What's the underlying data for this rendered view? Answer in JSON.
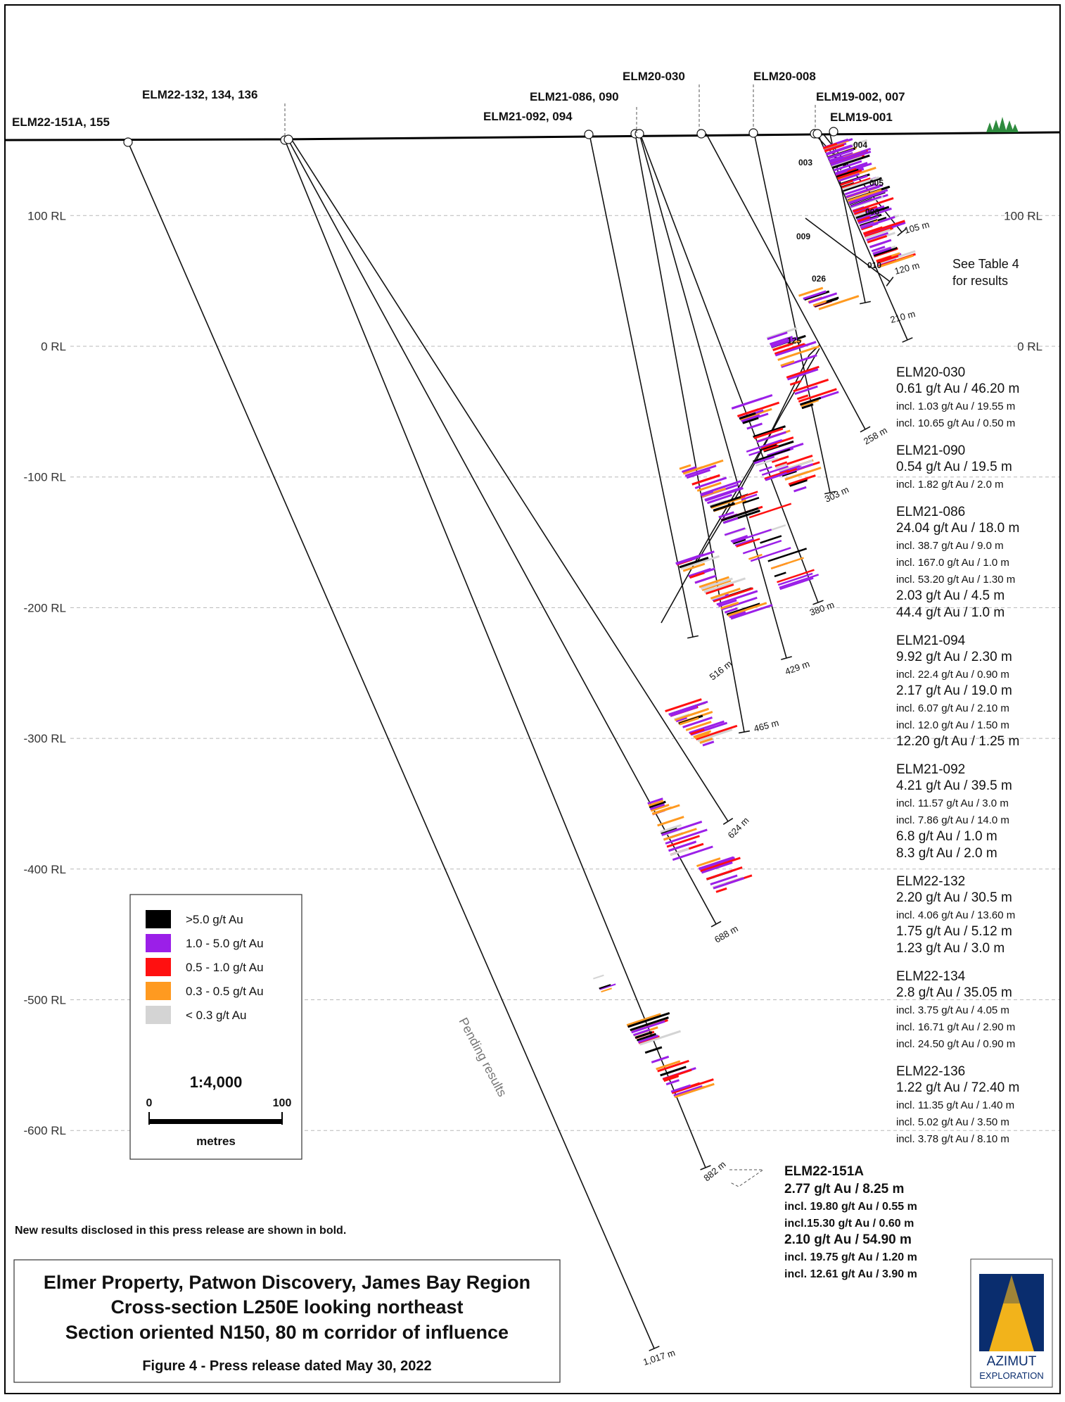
{
  "colors": {
    "frame": "#000000",
    "rl_line": "#b8b8b8",
    "rl_text": "#333333",
    "grade_gt5": "#000000",
    "grade_1_5": "#9b1fe8",
    "grade_05_1": "#ff1010",
    "grade_03_05": "#ff9a20",
    "grade_lt03": "#d4d4d4",
    "logo_blue": "#0a2d6e",
    "logo_gold": "#f2b31b",
    "tree": "#2e8b3e"
  },
  "rl_levels": [
    {
      "label": "100 RL",
      "rl": 100,
      "show_right": true
    },
    {
      "label": "0 RL",
      "rl": 0,
      "show_right": true
    },
    {
      "label": "-100 RL",
      "rl": -100,
      "show_right": false
    },
    {
      "label": "-200 RL",
      "rl": -200,
      "show_right": false
    },
    {
      "label": "-300 RL",
      "rl": -300,
      "show_right": false
    },
    {
      "label": "-400 RL",
      "rl": -400,
      "show_right": false
    },
    {
      "label": "-500 RL",
      "rl": -500,
      "show_right": false
    },
    {
      "label": "-600 RL",
      "rl": -600,
      "show_right": false
    }
  ],
  "collar_labels": [
    {
      "text": "ELM22-151A, 155",
      "pos": "a"
    },
    {
      "text": "ELM22-132, 134, 136",
      "pos": "b"
    },
    {
      "text": "ELM21-086, 090",
      "pos": "c"
    },
    {
      "text": "ELM21-092, 094",
      "pos": "d"
    },
    {
      "text": "ELM20-030",
      "pos": "e"
    },
    {
      "text": "ELM20-008",
      "pos": "f"
    },
    {
      "text": "ELM19-002, 007",
      "pos": "g"
    },
    {
      "text": "ELM19-001",
      "pos": "h"
    }
  ],
  "hole_ids": [
    "004",
    "003",
    "005",
    "006",
    "009",
    "010",
    "026",
    "125"
  ],
  "hole_lengths": [
    "105 m",
    "120 m",
    "210 m",
    "258 m",
    "303 m",
    "380 m",
    "429 m",
    "516 m",
    "465 m",
    "624 m",
    "688 m",
    "882 m",
    "1,017 m"
  ],
  "see_table": [
    "See Table 4",
    "for results"
  ],
  "pending_text": "Pending results",
  "results": [
    {
      "hole": "ELM20-030",
      "lines": [
        {
          "text": "0.61 g/t Au / 46.20 m",
          "big": true
        },
        {
          "text": "incl. 1.03 g/t Au / 19.55 m",
          "big": false
        },
        {
          "text": "incl. 10.65 g/t Au / 0.50 m",
          "big": false
        }
      ]
    },
    {
      "hole": "ELM21-090",
      "lines": [
        {
          "text": "0.54 g/t Au / 19.5 m",
          "big": true
        },
        {
          "text": "incl. 1.82 g/t Au / 2.0 m",
          "big": false
        }
      ]
    },
    {
      "hole": "ELM21-086",
      "lines": [
        {
          "text": "24.04 g/t Au / 18.0 m",
          "big": true
        },
        {
          "text": "incl. 38.7 g/t Au / 9.0 m",
          "big": false
        },
        {
          "text": "incl. 167.0 g/t Au / 1.0 m",
          "big": false
        },
        {
          "text": "incl. 53.20 g/t Au / 1.30 m",
          "big": false
        },
        {
          "text": "2.03 g/t Au / 4.5 m",
          "big": true
        },
        {
          "text": "44.4 g/t Au / 1.0 m",
          "big": true
        }
      ]
    },
    {
      "hole": "ELM21-094",
      "lines": [
        {
          "text": "9.92 g/t Au / 2.30 m",
          "big": true
        },
        {
          "text": "incl. 22.4 g/t Au / 0.90 m",
          "big": false
        },
        {
          "text": "2.17 g/t Au / 19.0 m",
          "big": true
        },
        {
          "text": "incl. 6.07 g/t Au / 2.10 m",
          "big": false
        },
        {
          "text": "incl. 12.0 g/t Au / 1.50 m",
          "big": false
        },
        {
          "text": "12.20 g/t Au / 1.25 m",
          "big": true
        }
      ]
    },
    {
      "hole": "ELM21-092",
      "lines": [
        {
          "text": "4.21 g/t Au / 39.5 m",
          "big": true
        },
        {
          "text": "incl. 11.57 g/t Au / 3.0 m",
          "big": false
        },
        {
          "text": "incl. 7.86 g/t Au / 14.0 m",
          "big": false
        },
        {
          "text": "6.8 g/t Au / 1.0 m",
          "big": true
        },
        {
          "text": "8.3 g/t Au / 2.0 m",
          "big": true
        }
      ]
    },
    {
      "hole": "ELM22-132",
      "lines": [
        {
          "text": "2.20 g/t Au / 30.5 m",
          "big": true
        },
        {
          "text": "incl. 4.06 g/t Au / 13.60 m",
          "big": false
        },
        {
          "text": "1.75 g/t Au / 5.12 m",
          "big": true
        },
        {
          "text": "1.23 g/t Au / 3.0 m",
          "big": true
        }
      ]
    },
    {
      "hole": "ELM22-134",
      "lines": [
        {
          "text": "2.8 g/t Au / 35.05 m",
          "big": true
        },
        {
          "text": "incl. 3.75 g/t Au / 4.05 m",
          "big": false
        },
        {
          "text": "incl. 16.71 g/t Au / 2.90 m",
          "big": false
        },
        {
          "text": "incl. 24.50 g/t Au / 0.90 m",
          "big": false
        }
      ]
    },
    {
      "hole": "ELM22-136",
      "lines": [
        {
          "text": "1.22 g/t Au / 72.40 m",
          "big": true
        },
        {
          "text": "incl. 11.35 g/t Au / 1.40 m",
          "big": false
        },
        {
          "text": "incl. 5.02 g/t Au / 3.50 m",
          "big": false
        },
        {
          "text": "incl. 3.78 g/t Au / 8.10 m",
          "big": false
        }
      ]
    }
  ],
  "bold_result": {
    "hole": "ELM22-151A",
    "lines": [
      {
        "text": "2.77 g/t Au / 8.25 m",
        "big": true
      },
      {
        "text": "incl. 19.80 g/t Au / 0.55 m",
        "big": false
      },
      {
        "text": "incl.15.30 g/t Au / 0.60 m",
        "big": false
      },
      {
        "text": "2.10 g/t Au / 54.90 m",
        "big": true
      },
      {
        "text": "incl. 19.75 g/t Au / 1.20 m",
        "big": false
      },
      {
        "text": "incl. 12.61 g/t Au / 3.90 m",
        "big": false
      }
    ]
  },
  "legend": {
    "items": [
      {
        "label": ">5.0 g/t Au",
        "color": "#000000"
      },
      {
        "label": "1.0 - 5.0 g/t Au",
        "color": "#9b1fe8"
      },
      {
        "label": "0.5 - 1.0 g/t Au",
        "color": "#ff1010"
      },
      {
        "label": "0.3 - 0.5 g/t Au",
        "color": "#ff9a20"
      },
      {
        "label": "< 0.3 g/t Au",
        "color": "#d4d4d4"
      }
    ],
    "scale": "1:4,000",
    "scale_min": "0",
    "scale_max": "100",
    "scale_unit": "metres"
  },
  "note": "New results disclosed in this press release are shown in bold.",
  "title_lines": [
    "Elmer Property, Patwon Discovery, James Bay Region",
    "Cross-section L250E looking northeast",
    "Section oriented N150, 80 m corridor of influence"
  ],
  "figure_caption": "Figure 4 - Press release dated May 30, 2022",
  "logo": {
    "line1": "AZIMUT",
    "line2": "EXPLORATION"
  }
}
